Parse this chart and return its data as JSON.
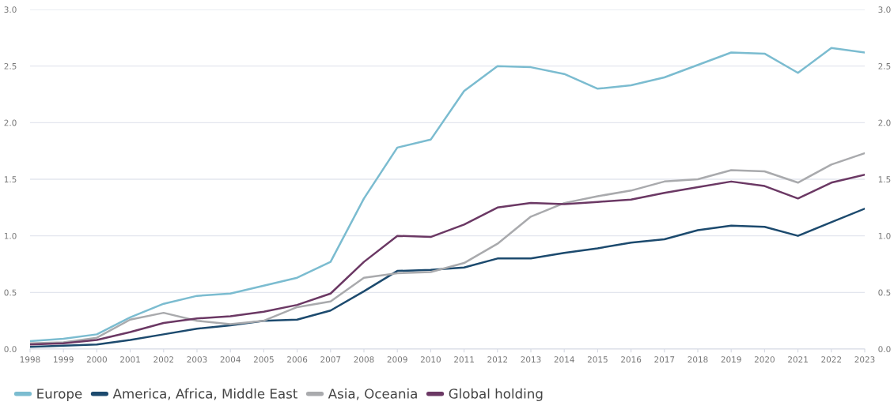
{
  "chart_data": {
    "type": "line",
    "categories": [
      "1998",
      "1999",
      "2000",
      "2001",
      "2002",
      "2003",
      "2004",
      "2005",
      "2006",
      "2007",
      "2008",
      "2009",
      "2010",
      "2011",
      "2012",
      "2013",
      "2014",
      "2015",
      "2016",
      "2017",
      "2018",
      "2019",
      "2020",
      "2021",
      "2022",
      "2023"
    ],
    "series": [
      {
        "name": "Europe",
        "color": "#7bbcd0",
        "values": [
          0.07,
          0.09,
          0.13,
          0.28,
          0.4,
          0.47,
          0.49,
          0.56,
          0.63,
          0.77,
          1.33,
          1.78,
          1.85,
          2.28,
          2.5,
          2.49,
          2.43,
          2.3,
          2.33,
          2.4,
          2.51,
          2.62,
          2.61,
          2.44,
          2.66,
          2.62
        ]
      },
      {
        "name": "America, Africa, Middle East",
        "color": "#1c4a6e",
        "values": [
          0.02,
          0.03,
          0.04,
          0.08,
          0.13,
          0.18,
          0.21,
          0.25,
          0.26,
          0.34,
          0.51,
          0.69,
          0.7,
          0.72,
          0.8,
          0.8,
          0.85,
          0.89,
          0.94,
          0.97,
          1.05,
          1.09,
          1.08,
          1.0,
          1.12,
          1.24
        ]
      },
      {
        "name": "Asia, Oceania",
        "color": "#a9aaad",
        "values": [
          0.05,
          0.06,
          0.1,
          0.26,
          0.32,
          0.25,
          0.22,
          0.25,
          0.37,
          0.42,
          0.63,
          0.67,
          0.68,
          0.76,
          0.93,
          1.17,
          1.29,
          1.35,
          1.4,
          1.48,
          1.5,
          1.58,
          1.57,
          1.47,
          1.63,
          1.73
        ]
      },
      {
        "name": "Global holding",
        "color": "#6b3864",
        "values": [
          0.04,
          0.05,
          0.08,
          0.15,
          0.23,
          0.27,
          0.29,
          0.33,
          0.39,
          0.49,
          0.77,
          1.0,
          0.99,
          1.1,
          1.25,
          1.29,
          1.28,
          1.3,
          1.32,
          1.38,
          1.43,
          1.48,
          1.44,
          1.33,
          1.47,
          1.54
        ]
      }
    ],
    "ylim": [
      0,
      3
    ],
    "yticks": [
      {
        "value": 0,
        "label": "0.0"
      },
      {
        "value": 0.5,
        "label": "0.5"
      },
      {
        "value": 1,
        "label": "1.0"
      },
      {
        "value": 1.5,
        "label": "1.5"
      },
      {
        "value": 2,
        "label": "2.0"
      },
      {
        "value": 2.5,
        "label": "2.5"
      },
      {
        "value": 3,
        "label": "3.0"
      }
    ],
    "y2lim": [
      0,
      3
    ],
    "y2ticks": [
      {
        "value": 0,
        "label": "0.0"
      },
      {
        "value": 0.5,
        "label": "0.5"
      },
      {
        "value": 1,
        "label": "1.0"
      },
      {
        "value": 1.5,
        "label": "1.5"
      },
      {
        "value": 2,
        "label": "2.0"
      },
      {
        "value": 2.5,
        "label": "2.5"
      },
      {
        "value": 3,
        "label": "3.0"
      }
    ],
    "grid": "y",
    "legend": "bottom left",
    "marker": "none",
    "line_style": "solid"
  }
}
